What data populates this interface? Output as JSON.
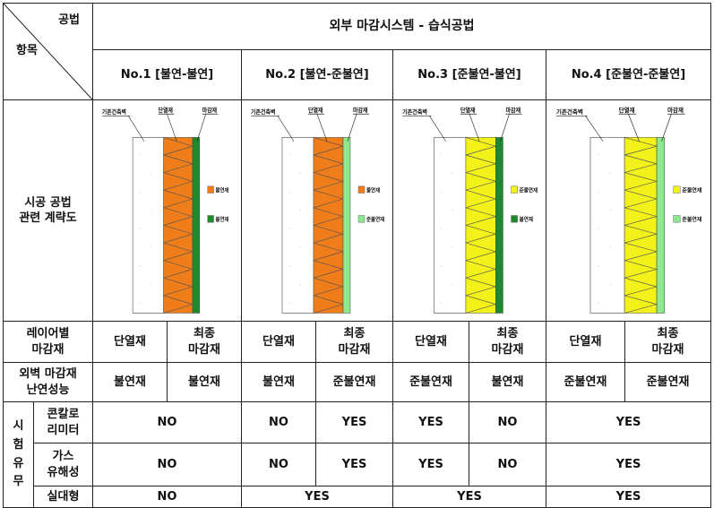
{
  "corner": {
    "top_right": "공법",
    "bottom_left": "항목"
  },
  "main_title": "외부 마감시스템 - 습식공법",
  "systems": [
    {
      "label": "No.1 [불연-불연]",
      "insul_color": "#ef7d1a",
      "finish_color": "#1f8a2a",
      "legend": [
        "불연재",
        "불연재"
      ]
    },
    {
      "label": "No.2 [불연-준불연]",
      "insul_color": "#ef7d1a",
      "finish_color": "#8fe88f",
      "legend": [
        "불연재",
        "준불연재"
      ]
    },
    {
      "label": "No.3 [준불연-불연]",
      "insul_color": "#f2f21a",
      "finish_color": "#1f8a2a",
      "legend": [
        "준불연재",
        "불연재"
      ]
    },
    {
      "label": "No.4 [준불연-준불연]",
      "insul_color": "#f2f21a",
      "finish_color": "#8fe88f",
      "legend": [
        "준불연재",
        "준불연재"
      ]
    }
  ],
  "diagram_labels": {
    "wall": "기존건축벽",
    "insulation": "단열재",
    "finish": "마감재"
  },
  "rows": {
    "diagram_header": "시공 공법\n관련 계략도",
    "layer_header": "레이어별\n마감재",
    "layer_insulation": "단열재",
    "layer_finish": "최종\n마감재",
    "rating_header": "외벽 마감재\n난연성능",
    "ratings": [
      "불연재",
      "불연재",
      "불연재",
      "준불연재",
      "준불연재",
      "불연재",
      "준불연재",
      "준불연재"
    ],
    "test_header": "시\n험\n유\n무",
    "calorimeter": "콘칼로\n리미터",
    "gas": "가스\n유해성",
    "fullscale": "실대형",
    "calorimeter_values": [
      "NO",
      "NO",
      "YES",
      "YES",
      "NO",
      "YES"
    ],
    "gas_values": [
      "NO",
      "NO",
      "YES",
      "YES",
      "NO",
      "YES"
    ],
    "fullscale_values": [
      "NO",
      "YES",
      "YES",
      "YES"
    ]
  }
}
